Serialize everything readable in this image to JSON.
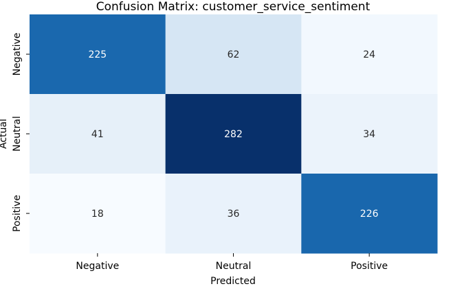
{
  "chart_data": {
    "type": "heatmap",
    "title": "Confusion Matrix: customer_service_sentiment",
    "xlabel": "Predicted",
    "ylabel": "Actual",
    "x_categories": [
      "Negative",
      "Neutral",
      "Positive"
    ],
    "y_categories": [
      "Negative",
      "Neutral",
      "Positive"
    ],
    "values": [
      [
        225,
        62,
        24
      ],
      [
        41,
        282,
        34
      ],
      [
        18,
        36,
        226
      ]
    ],
    "colormap": "Blues",
    "colorbar": false
  }
}
